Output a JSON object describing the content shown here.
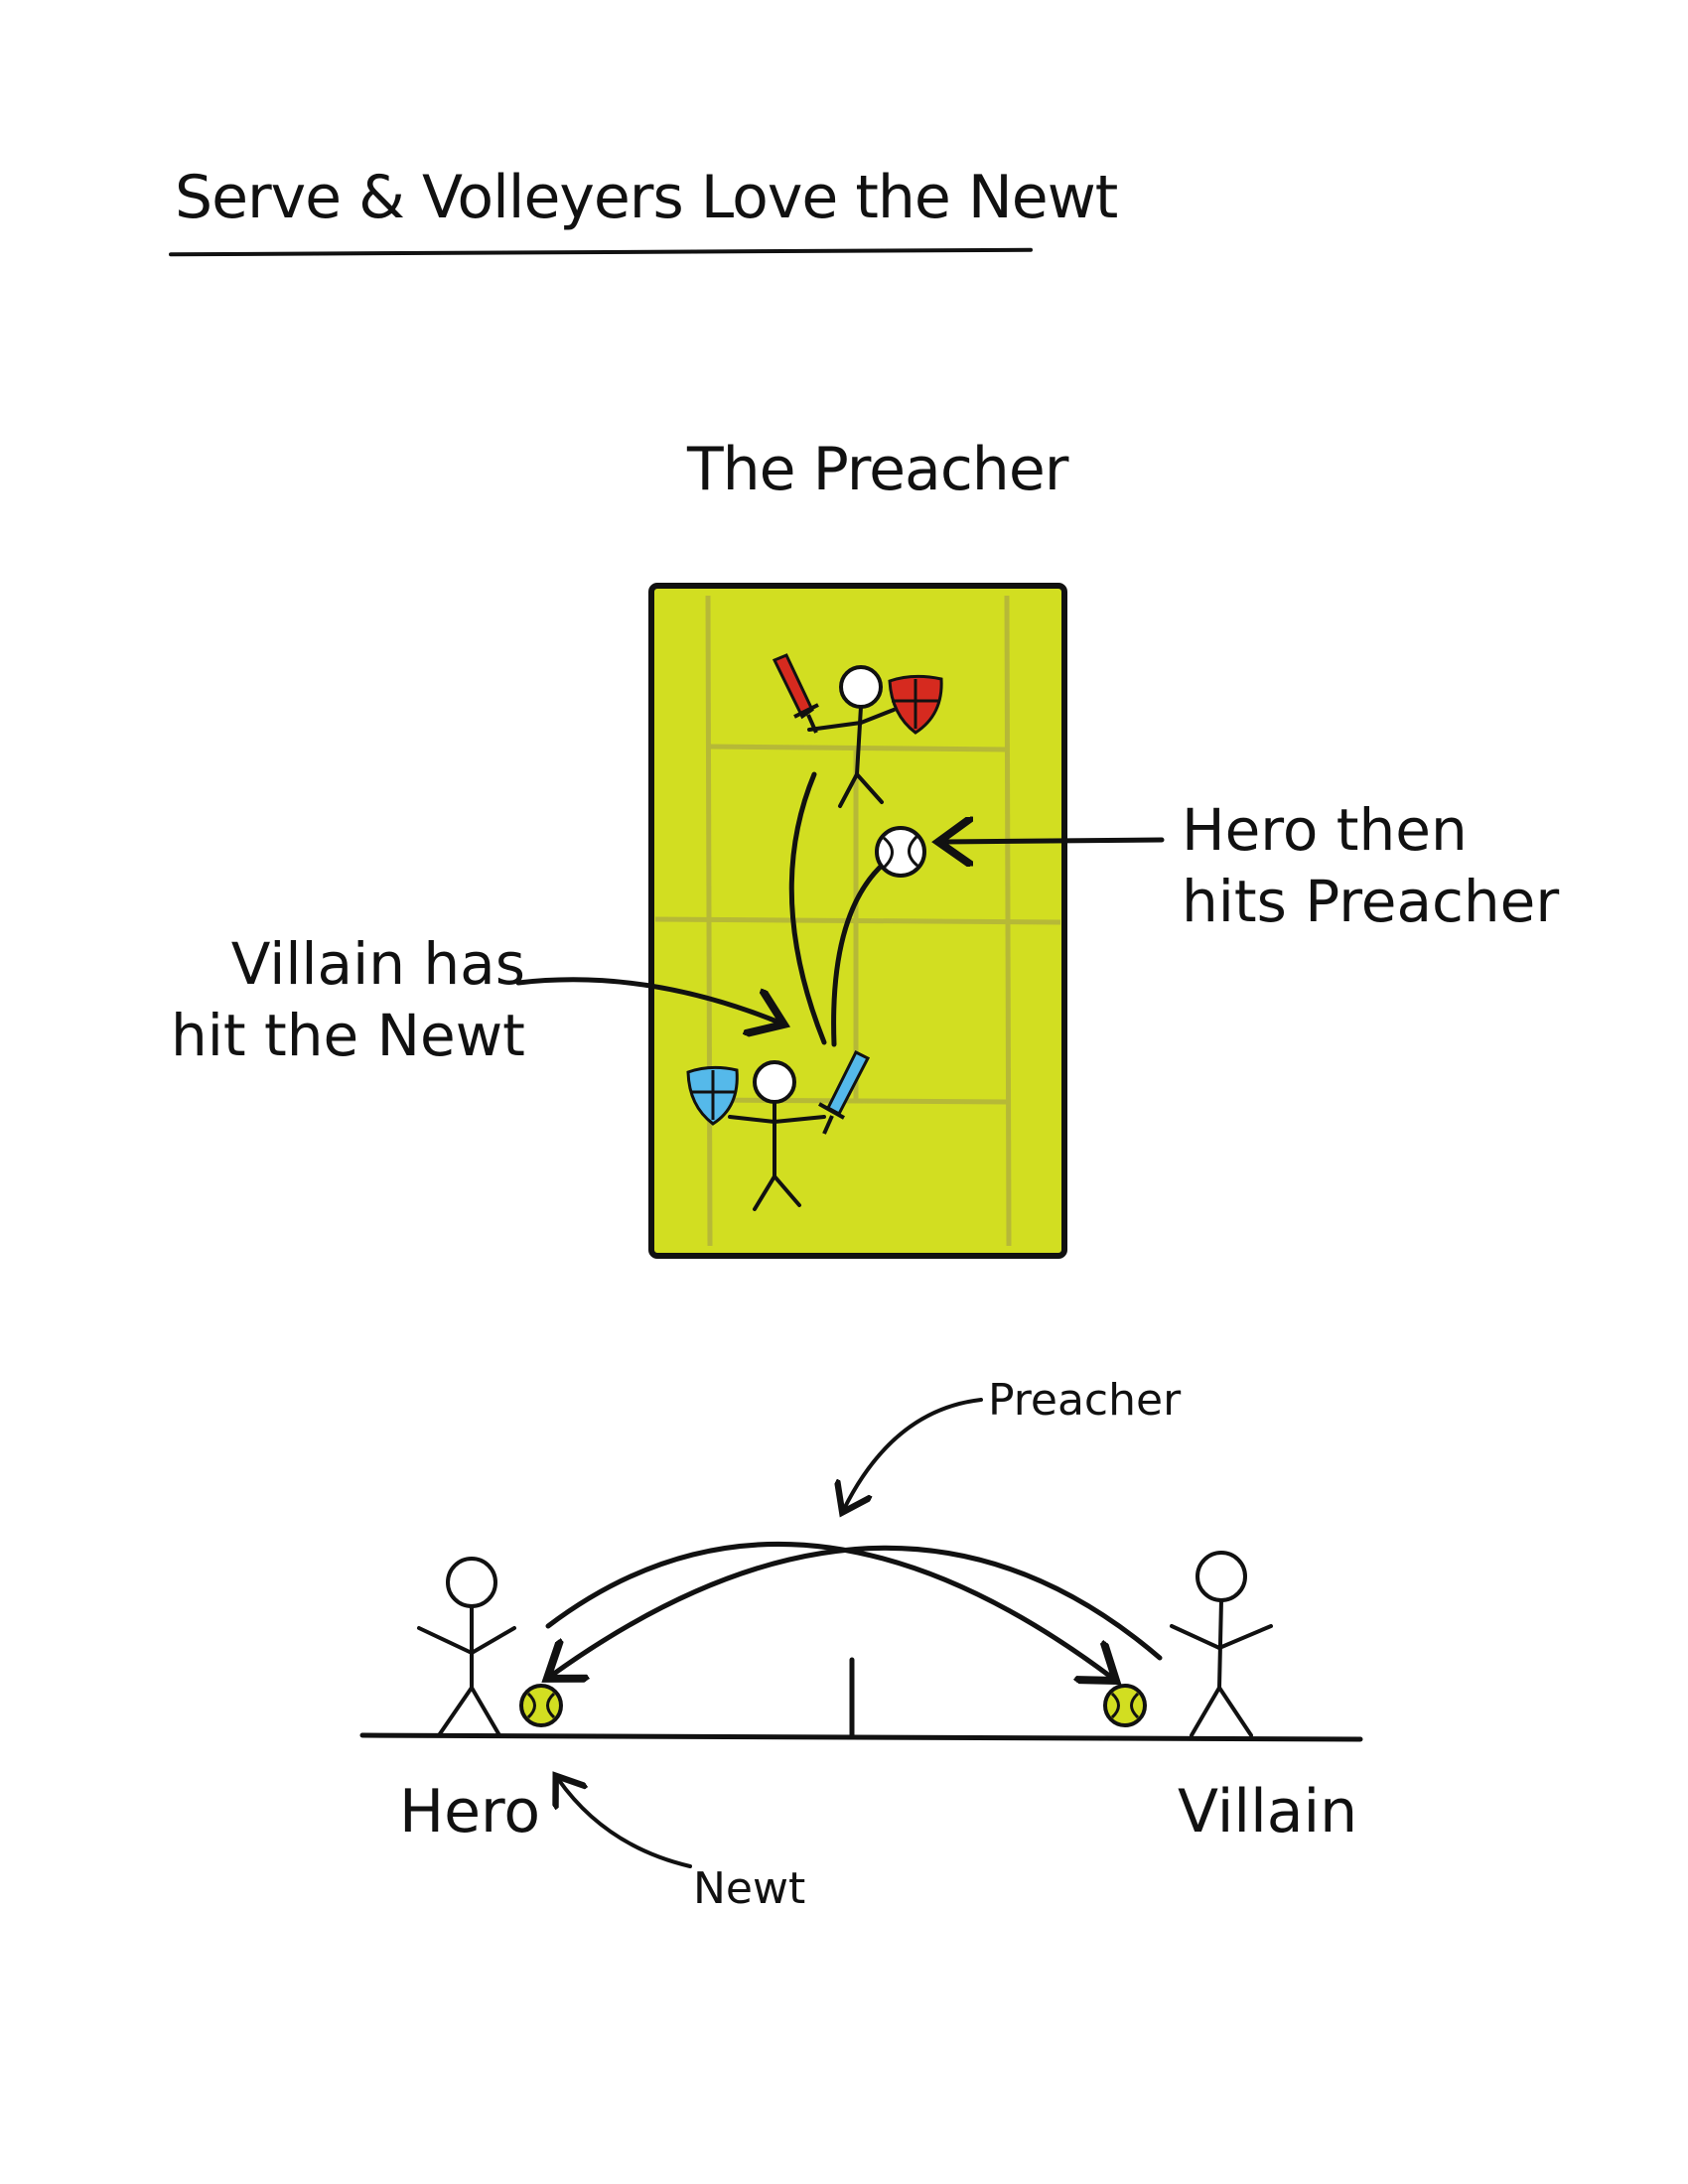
{
  "title": "Serve & Volleyers Love the Newt",
  "court_diagram": {
    "heading": "The Preacher",
    "annotation_right": [
      "Hero then",
      "hits Preacher"
    ],
    "annotation_left": [
      "Villain has",
      "hit the Newt"
    ],
    "court_color": "#d2de21",
    "court_line_color": "#b4b53a",
    "top_player_color": "#d62a1f",
    "bottom_player_color": "#55b9ea"
  },
  "side_diagram": {
    "arc_label": "Preacher",
    "left_player": "Hero",
    "right_player": "Villain",
    "ground_label": "Newt",
    "ball_color": "#d2de21"
  }
}
